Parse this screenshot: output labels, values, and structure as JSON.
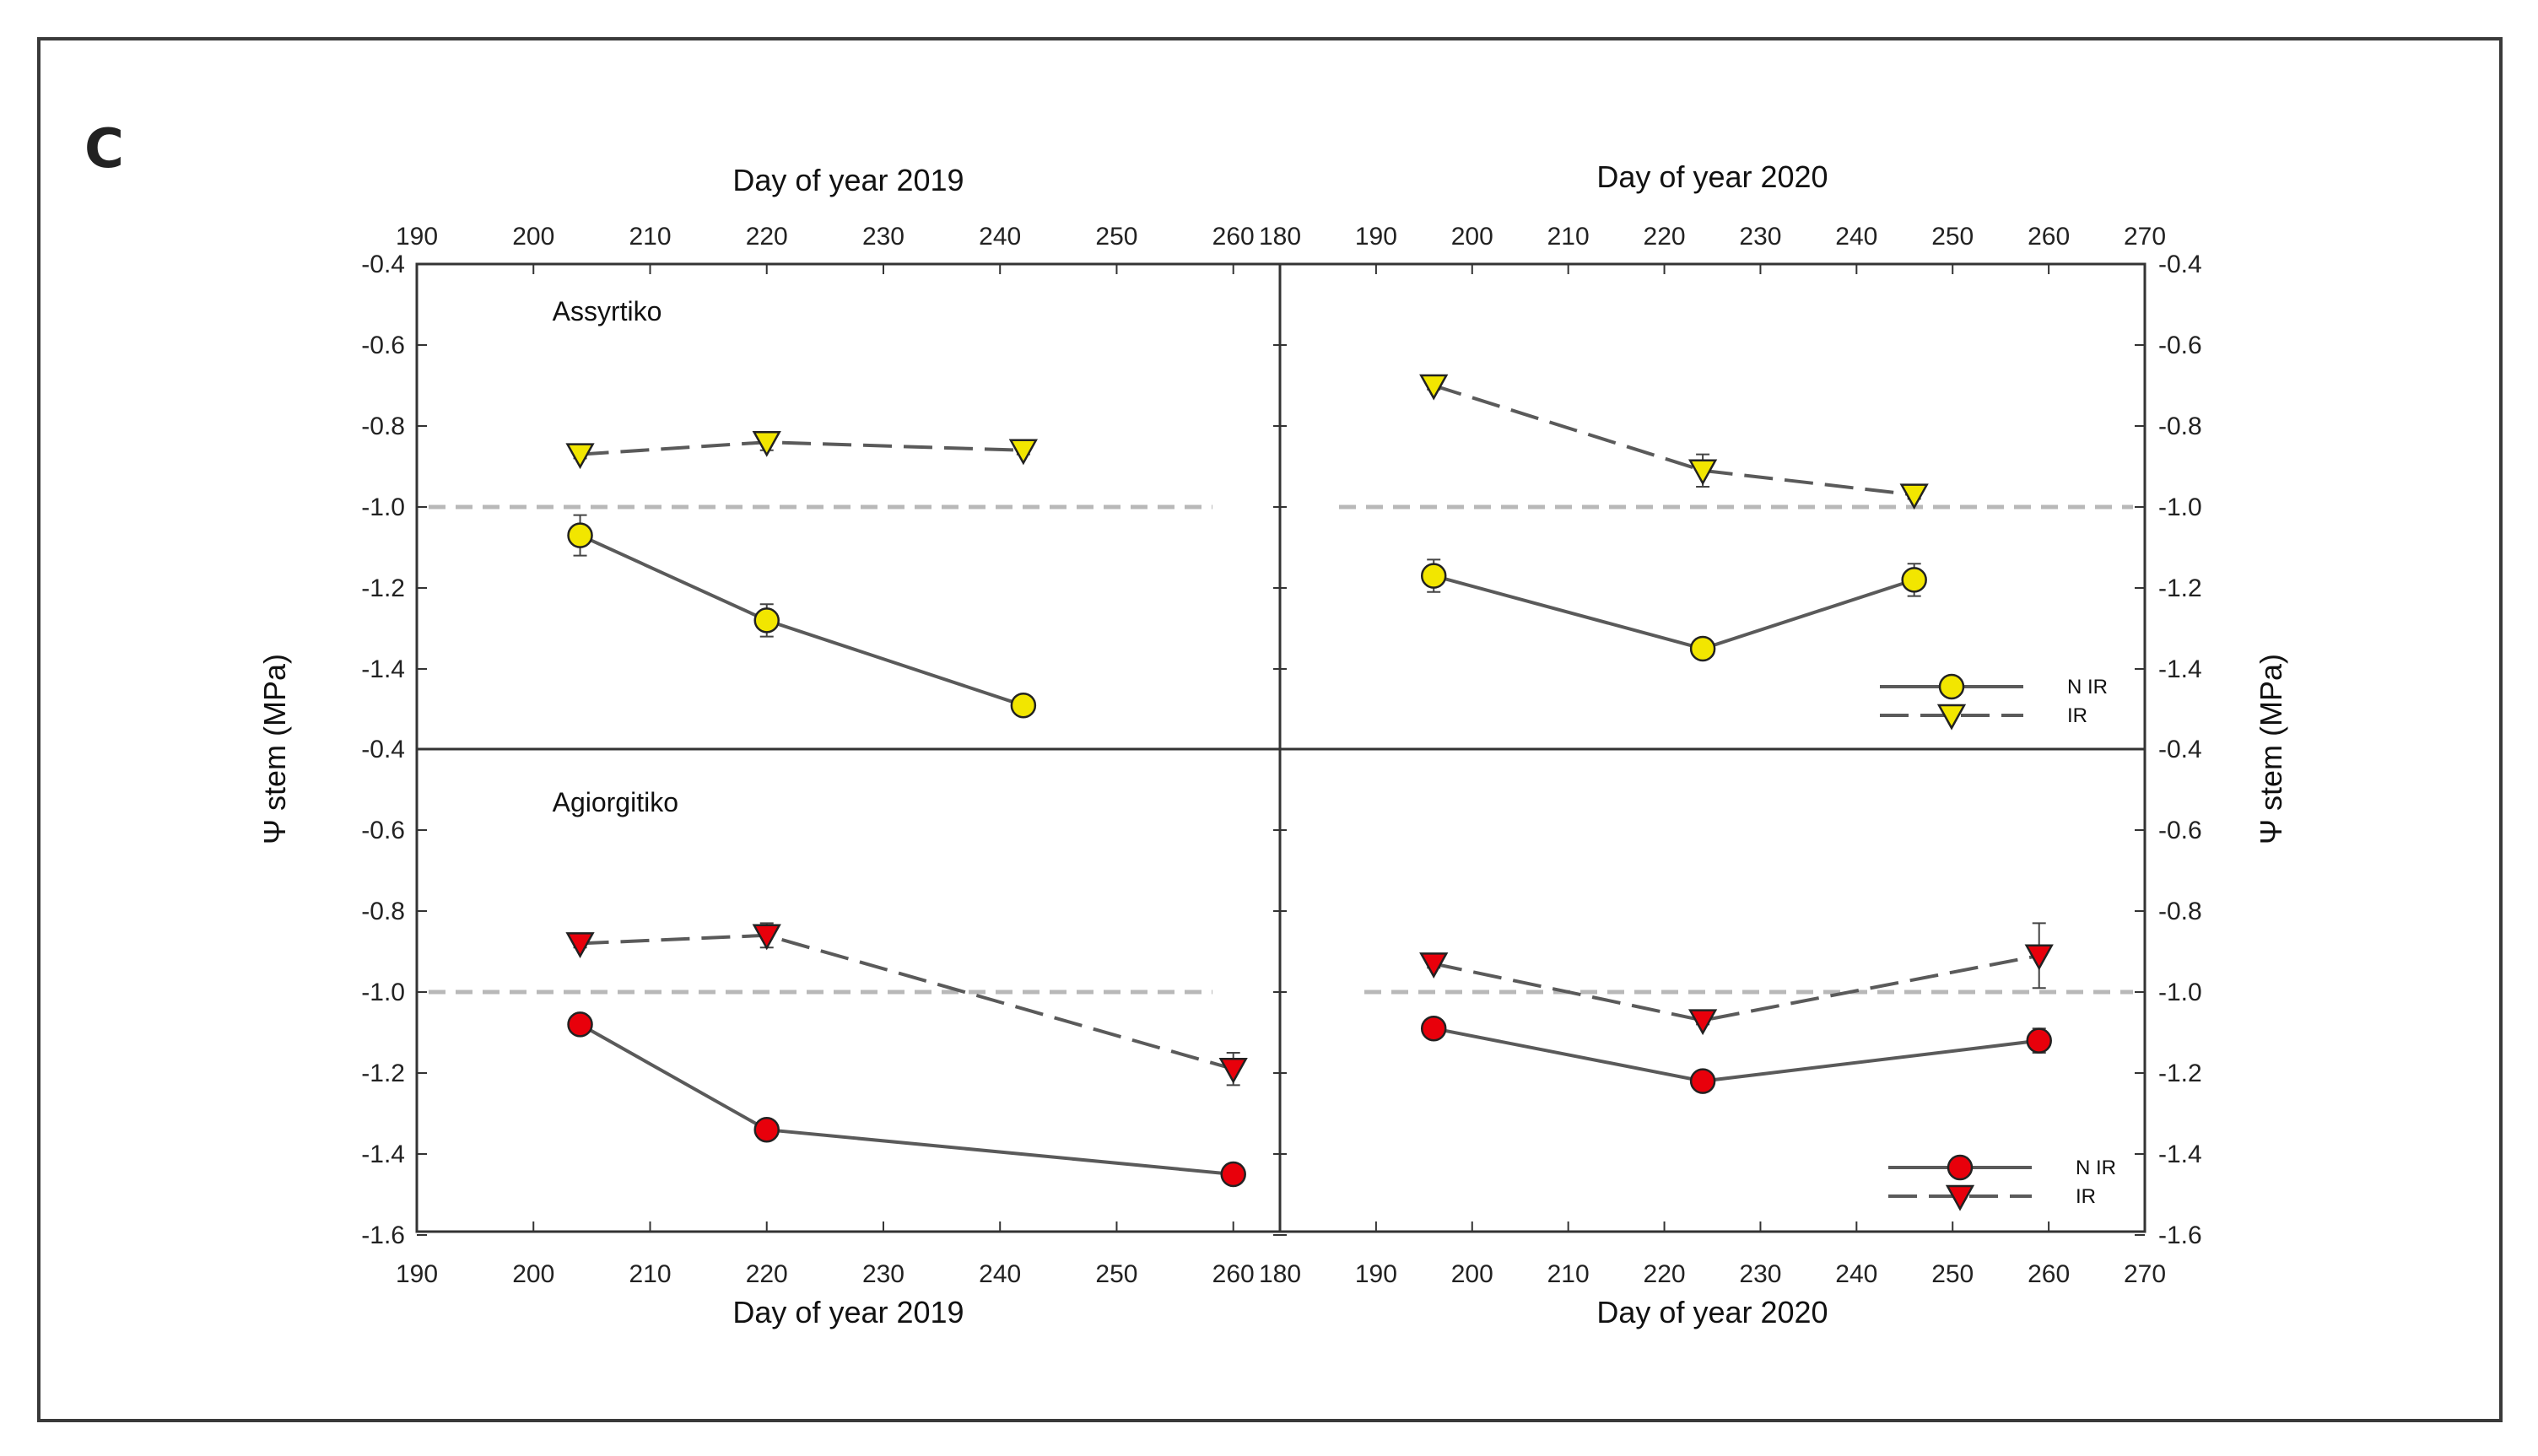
{
  "panel_letter": "C",
  "chart_data": {
    "type": "line",
    "ylabel": "Ψ stem (MPa)",
    "x_title_2019": "Day of year 2019",
    "x_title_2020": "Day of year 2020",
    "xlim_2019": [
      190,
      264
    ],
    "xlim_2020": [
      180,
      270
    ],
    "xticks_2019": [
      "190",
      "200",
      "210",
      "220",
      "230",
      "240",
      "250",
      "260"
    ],
    "xticks_2020": [
      "180",
      "190",
      "200",
      "210",
      "220",
      "230",
      "240",
      "250",
      "260",
      "270"
    ],
    "ylim": [
      -1.6,
      -0.4
    ],
    "yticks_top": [
      "-0.4",
      "-0.6",
      "-0.8",
      "-1.0",
      "-1.2",
      "-1.4"
    ],
    "yticks_bottom": [
      "-0.4",
      "-0.6",
      "-0.8",
      "-1.0",
      "-1.2",
      "-1.4",
      "-1.6"
    ],
    "reference_line": -1.0,
    "legend_labels": [
      "N IR",
      "IR"
    ],
    "colors": {
      "assyrtiko": "#f2e600",
      "agiorgitiko": "#e8000b",
      "line": "#5a5a5a",
      "ref": "#b8b8b8"
    },
    "panels": [
      {
        "id": "assyrtiko-2019",
        "label": "Assyrtiko",
        "variety": "assyrtiko",
        "year": "2019",
        "series": [
          {
            "name": "N IR",
            "x": [
              204,
              220,
              242
            ],
            "y": [
              -1.07,
              -1.28,
              -1.49
            ],
            "err": [
              0.05,
              0.04,
              0.01
            ]
          },
          {
            "name": "IR",
            "x": [
              204,
              220,
              242
            ],
            "y": [
              -0.87,
              -0.84,
              -0.86
            ],
            "err": [
              0.01,
              0.02,
              0.01
            ]
          }
        ]
      },
      {
        "id": "assyrtiko-2020",
        "label": "",
        "variety": "assyrtiko",
        "year": "2020",
        "series": [
          {
            "name": "N IR",
            "x": [
              196,
              224,
              246
            ],
            "y": [
              -1.17,
              -1.35,
              -1.18
            ],
            "err": [
              0.04,
              0.02,
              0.04
            ]
          },
          {
            "name": "IR",
            "x": [
              196,
              224,
              246
            ],
            "y": [
              -0.7,
              -0.91,
              -0.97
            ],
            "err": [
              0.01,
              0.04,
              0.01
            ]
          }
        ]
      },
      {
        "id": "agiorgitiko-2019",
        "label": "Agiorgitiko",
        "variety": "agiorgitiko",
        "year": "2019",
        "series": [
          {
            "name": "N IR",
            "x": [
              204,
              220,
              260
            ],
            "y": [
              -1.08,
              -1.34,
              -1.45
            ],
            "err": [
              0.01,
              0.01,
              0.02
            ]
          },
          {
            "name": "IR",
            "x": [
              204,
              220,
              260
            ],
            "y": [
              -0.88,
              -0.86,
              -1.19
            ],
            "err": [
              0.01,
              0.03,
              0.04
            ]
          }
        ]
      },
      {
        "id": "agiorgitiko-2020",
        "label": "",
        "variety": "agiorgitiko",
        "year": "2020",
        "series": [
          {
            "name": "N IR",
            "x": [
              196,
              224,
              259
            ],
            "y": [
              -1.09,
              -1.22,
              -1.12
            ],
            "err": [
              0.01,
              0.02,
              0.03
            ]
          },
          {
            "name": "IR",
            "x": [
              196,
              224,
              259
            ],
            "y": [
              -0.93,
              -1.07,
              -0.91
            ],
            "err": [
              0.01,
              0.01,
              0.08
            ]
          }
        ]
      }
    ]
  }
}
